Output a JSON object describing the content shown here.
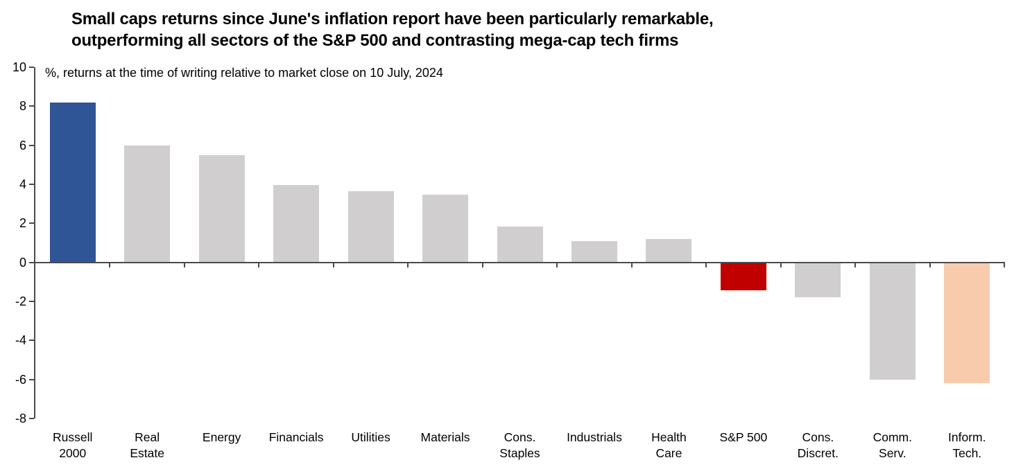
{
  "title": {
    "line1": "Small caps returns since June's inflation report have been particularly remarkable,",
    "line2": "outperforming all sectors of the S&P 500 and contrasting mega-cap tech firms"
  },
  "chart_data": {
    "type": "bar",
    "title": "Small caps returns since June's inflation report have been particularly remarkable, outperforming all sectors of the S&P 500 and contrasting mega-cap tech firms",
    "subtitle": "%, returns at the time of writing relative to market close on 10 July, 2024",
    "categories": [
      "Russell 2000",
      "Real Estate",
      "Energy",
      "Financials",
      "Utilities",
      "Materials",
      "Cons. Staples",
      "Industrials",
      "Health Care",
      "S&P 500",
      "Cons. Discret.",
      "Comm. Serv.",
      "Inform. Tech."
    ],
    "category_label_lines": [
      [
        "Russell",
        "2000"
      ],
      [
        "Real",
        "Estate"
      ],
      [
        "Energy"
      ],
      [
        "Financials"
      ],
      [
        "Utilities"
      ],
      [
        "Materials"
      ],
      [
        "Cons.",
        "Staples"
      ],
      [
        "Industrials"
      ],
      [
        "Health",
        "Care"
      ],
      [
        "S&P 500"
      ],
      [
        "Cons.",
        "Discret."
      ],
      [
        "Comm.",
        "Serv."
      ],
      [
        "Inform.",
        "Tech."
      ]
    ],
    "values": [
      8.2,
      6.0,
      5.5,
      3.95,
      3.65,
      3.45,
      1.85,
      1.1,
      1.2,
      -1.45,
      -1.8,
      -6.0,
      -6.2
    ],
    "bar_colors": [
      "#2F5597",
      "#D0CECE",
      "#D0CECE",
      "#D0CECE",
      "#D0CECE",
      "#D0CECE",
      "#D0CECE",
      "#D0CECE",
      "#D0CECE",
      "#C00000",
      "#D0CECE",
      "#D0CECE",
      "#F8CBAD"
    ],
    "highlight_colors": {
      "russell_2000": "#2F5597",
      "sp500": "#C00000",
      "inform_tech": "#F8CBAD",
      "default": "#D0CECE"
    },
    "axis_color": "#4a4a4a",
    "xlabel": "",
    "ylabel": "",
    "ylim": [
      -8,
      10
    ],
    "yticks": [
      10,
      8,
      6,
      4,
      2,
      0,
      -2,
      -4,
      -6,
      -8
    ],
    "grid": false,
    "legend": null
  }
}
